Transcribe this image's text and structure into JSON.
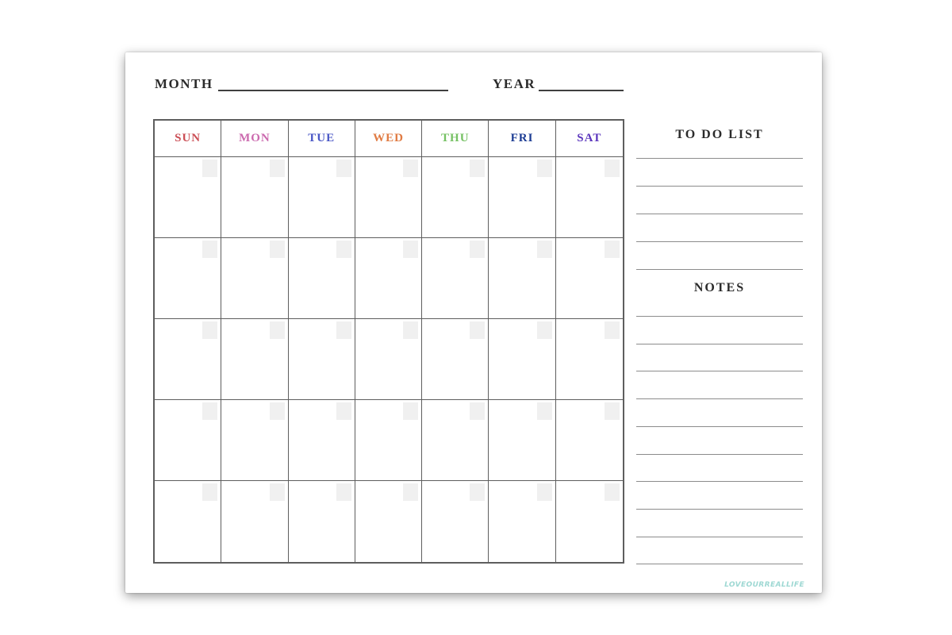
{
  "page": {
    "header": {
      "month_label": "MONTH",
      "year_label": "YEAR"
    },
    "calendar": {
      "days": [
        {
          "label": "SUN",
          "color": "#cb4e55"
        },
        {
          "label": "MON",
          "color": "#cb69ae"
        },
        {
          "label": "TUE",
          "color": "#4a57c6"
        },
        {
          "label": "WED",
          "color": "#e07b43"
        },
        {
          "label": "THU",
          "color": "#75c163"
        },
        {
          "label": "FRI",
          "color": "#1d3d94"
        },
        {
          "label": "SAT",
          "color": "#5b36bd"
        }
      ],
      "week_rows": 5,
      "columns": 7
    },
    "sidebar": {
      "todo": {
        "title": "TO DO LIST",
        "lines": 5
      },
      "notes": {
        "title": "NOTES",
        "lines": 10
      }
    },
    "watermark": "LOVEOURREALLIFE",
    "colors": {
      "grid_border": "#5e5e5e",
      "rule_line": "#8c8c8c",
      "header_rule": "#3f3f3f",
      "date_box": "#f0f0f0",
      "title_text": "#2b2b2b",
      "watermark": "#9ed8d3"
    }
  }
}
